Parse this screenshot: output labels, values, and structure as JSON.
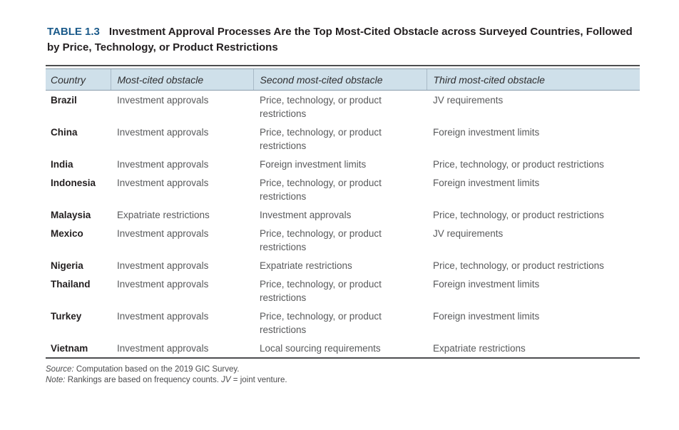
{
  "caption": {
    "label": "TABLE 1.3",
    "title": "Investment Approval Processes Are the Top Most-Cited Obstacle across Surveyed Countries, Followed by Price, Technology, or Product Restrictions"
  },
  "table": {
    "columns": [
      "Country",
      "Most-cited obstacle",
      "Second most-cited obstacle",
      "Third most-cited obstacle"
    ],
    "rows": [
      {
        "country": "Brazil",
        "most_cited": "Investment approvals",
        "second": "Price, technology, or product restrictions",
        "third": "JV requirements"
      },
      {
        "country": "China",
        "most_cited": "Investment approvals",
        "second": "Price, technology, or product restrictions",
        "third": "Foreign investment limits"
      },
      {
        "country": "India",
        "most_cited": "Investment approvals",
        "second": "Foreign investment limits",
        "third": "Price, technology, or product restrictions"
      },
      {
        "country": "Indonesia",
        "most_cited": "Investment approvals",
        "second": "Price, technology, or product restrictions",
        "third": "Foreign investment limits"
      },
      {
        "country": "Malaysia",
        "most_cited": "Expatriate restrictions",
        "second": "Investment approvals",
        "third": "Price, technology, or product restrictions"
      },
      {
        "country": "Mexico",
        "most_cited": "Investment approvals",
        "second": "Price, technology, or product restrictions",
        "third": "JV requirements"
      },
      {
        "country": "Nigeria",
        "most_cited": "Investment approvals",
        "second": "Expatriate restrictions",
        "third": "Price, technology, or product restrictions"
      },
      {
        "country": "Thailand",
        "most_cited": "Investment approvals",
        "second": "Price, technology, or product restrictions",
        "third": "Foreign investment limits"
      },
      {
        "country": "Turkey",
        "most_cited": "Investment approvals",
        "second": "Price, technology, or product restrictions",
        "third": "Foreign investment limits"
      },
      {
        "country": "Vietnam",
        "most_cited": "Investment approvals",
        "second": "Local sourcing requirements",
        "third": "Expatriate restrictions"
      }
    ]
  },
  "footnotes": {
    "source_label": "Source:",
    "source_text": "Computation based on the 2019 GIC Survey.",
    "note_label": "Note:",
    "note_text": "Rankings are based on frequency counts.",
    "jv_abbrev": "JV",
    "jv_definition": "= joint venture."
  },
  "colors": {
    "accent_blue": "#1a5a8a",
    "header_band": "#cfe0ea",
    "rule_dark": "#4d4e50",
    "country_text": "#231f20",
    "body_text": "#595a5c"
  }
}
